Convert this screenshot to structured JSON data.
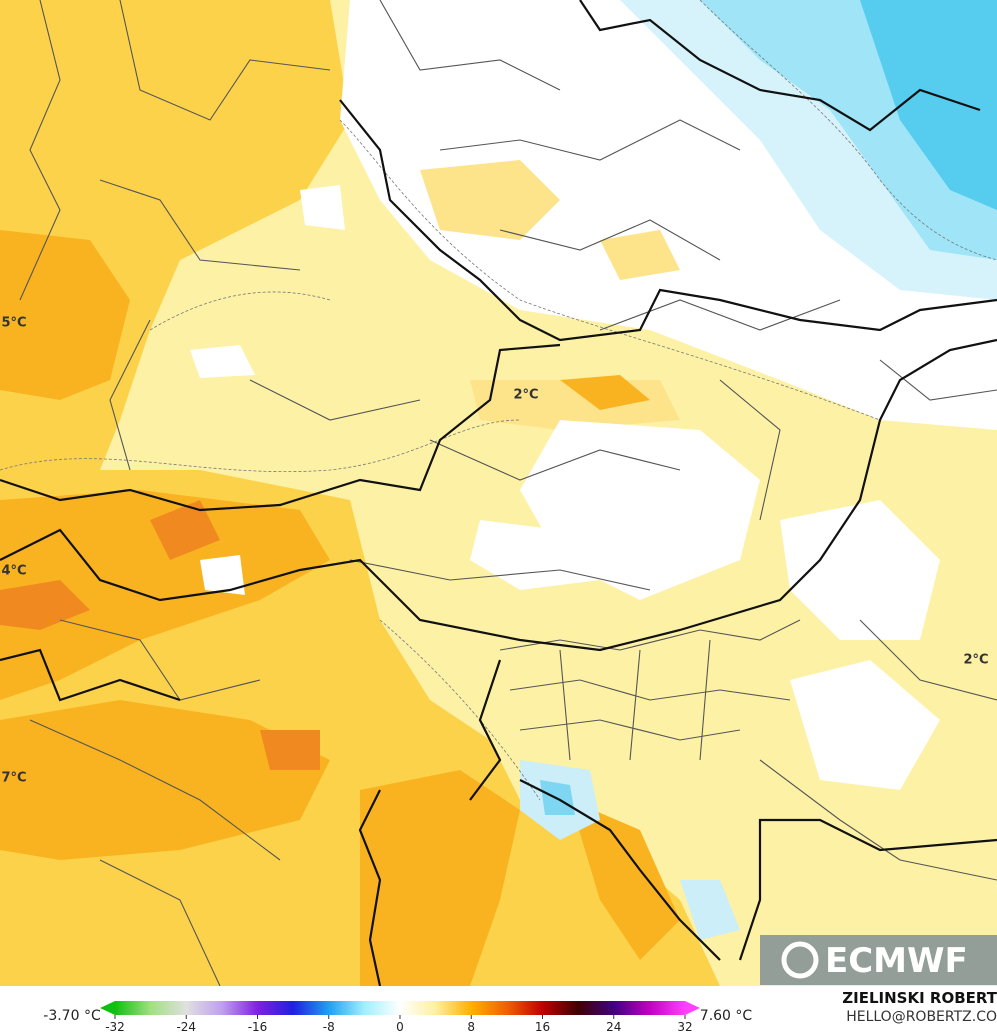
{
  "map": {
    "labels": [
      {
        "text": "2°C"
      },
      {
        "text": "5°C"
      },
      {
        "text": "4°C"
      },
      {
        "text": "7°C"
      },
      {
        "text": "2°C"
      }
    ],
    "logo": "ECMWF",
    "credit": {
      "name": "ZIELINSKI ROBERT",
      "contact": "HELLO@ROBERTZ.CO"
    }
  },
  "legend": {
    "min_label": "-3.70 °C",
    "max_label": "7.60 °C",
    "range": [
      -32,
      32
    ],
    "ticks": [
      -32,
      -24,
      -16,
      -8,
      0,
      8,
      16,
      24,
      32
    ],
    "colors": [
      "#10c010",
      "#a0e080",
      "#e0e0e0",
      "#c0a0f0",
      "#8020e0",
      "#2020e0",
      "#20a0f0",
      "#a0f0ff",
      "#ffffff",
      "#fff0a0",
      "#ffb000",
      "#f06000",
      "#c00000",
      "#400000",
      "#400080",
      "#c000c0",
      "#ff40ff"
    ]
  }
}
